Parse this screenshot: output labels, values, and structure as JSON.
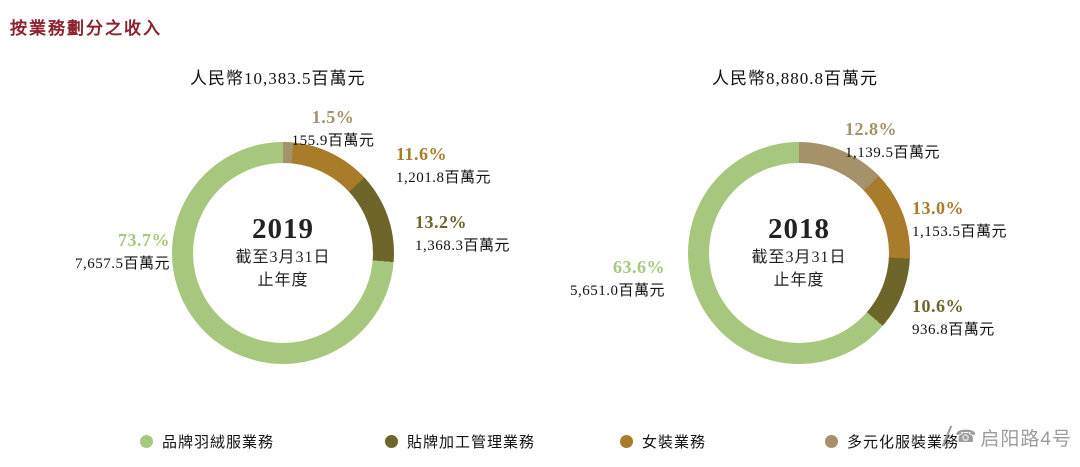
{
  "page_title": "按業務劃分之收入",
  "title_color": "#8e2130",
  "chart_data": [
    {
      "type": "pie",
      "title": "人民幣10,383.5百萬元",
      "center": {
        "year": "2019",
        "line1": "截至3月31日",
        "line2": "止年度"
      },
      "legend_position": "bottom",
      "segments": [
        {
          "name": "多元化服裝業務",
          "pct": 1.5,
          "pct_label": "1.5%",
          "value": "155.9百萬元",
          "color": "#a5916a"
        },
        {
          "name": "女裝業務",
          "pct": 11.6,
          "pct_label": "11.6%",
          "value": "1,201.8百萬元",
          "color": "#a87c2a"
        },
        {
          "name": "貼牌加工管理業務",
          "pct": 13.2,
          "pct_label": "13.2%",
          "value": "1,368.3百萬元",
          "color": "#6e652a"
        },
        {
          "name": "品牌羽絨服業務",
          "pct": 73.7,
          "pct_label": "73.7%",
          "value": "7,657.5百萬元",
          "color": "#a8c77e"
        }
      ]
    },
    {
      "type": "pie",
      "title": "人民幣8,880.8百萬元",
      "center": {
        "year": "2018",
        "line1": "截至3月31日",
        "line2": "止年度"
      },
      "legend_position": "bottom",
      "segments": [
        {
          "name": "多元化服裝業務",
          "pct": 12.8,
          "pct_label": "12.8%",
          "value": "1,139.5百萬元",
          "color": "#a5916a"
        },
        {
          "name": "女裝業務",
          "pct": 13.0,
          "pct_label": "13.0%",
          "value": "1,153.5百萬元",
          "color": "#a87c2a"
        },
        {
          "name": "貼牌加工管理業務",
          "pct": 10.6,
          "pct_label": "10.6%",
          "value": "936.8百萬元",
          "color": "#6e652a"
        },
        {
          "name": "品牌羽絨服業務",
          "pct": 63.6,
          "pct_label": "63.6%",
          "value": "5,651.0百萬元",
          "color": "#a8c77e"
        }
      ]
    }
  ],
  "legend": [
    {
      "label": "品牌羽絨服業務",
      "color": "#a8c77e"
    },
    {
      "label": "貼牌加工管理業務",
      "color": "#6e652a"
    },
    {
      "label": "女裝業務",
      "color": "#a87c2a"
    },
    {
      "label": "多元化服裝業務",
      "color": "#a5916a"
    }
  ],
  "watermark": {
    "slash": "/",
    "icon": "☎",
    "text": "启阳路4号"
  }
}
